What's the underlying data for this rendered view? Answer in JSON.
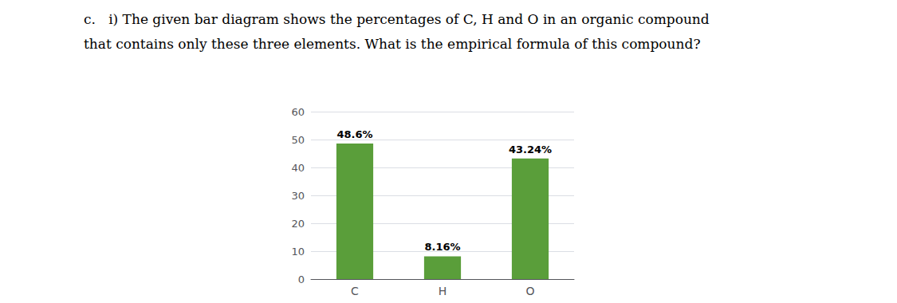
{
  "chart_data": {
    "type": "bar",
    "title": "c.   i) The given bar diagram shows the percentages of C, H and O in an organic compound",
    "subtitle": "that contains only these three elements. What is the empirical formula of this compound?",
    "categories": [
      "C",
      "H",
      "O"
    ],
    "values": [
      48.6,
      8.16,
      43.24
    ],
    "value_labels": [
      "48.6%",
      "8.16%",
      "43.24%"
    ],
    "data_labels": true,
    "color": "#5a9e3a",
    "ylim": [
      0,
      60
    ],
    "yticks": [
      0,
      10,
      20,
      30,
      40,
      50,
      60
    ],
    "grid": true
  }
}
